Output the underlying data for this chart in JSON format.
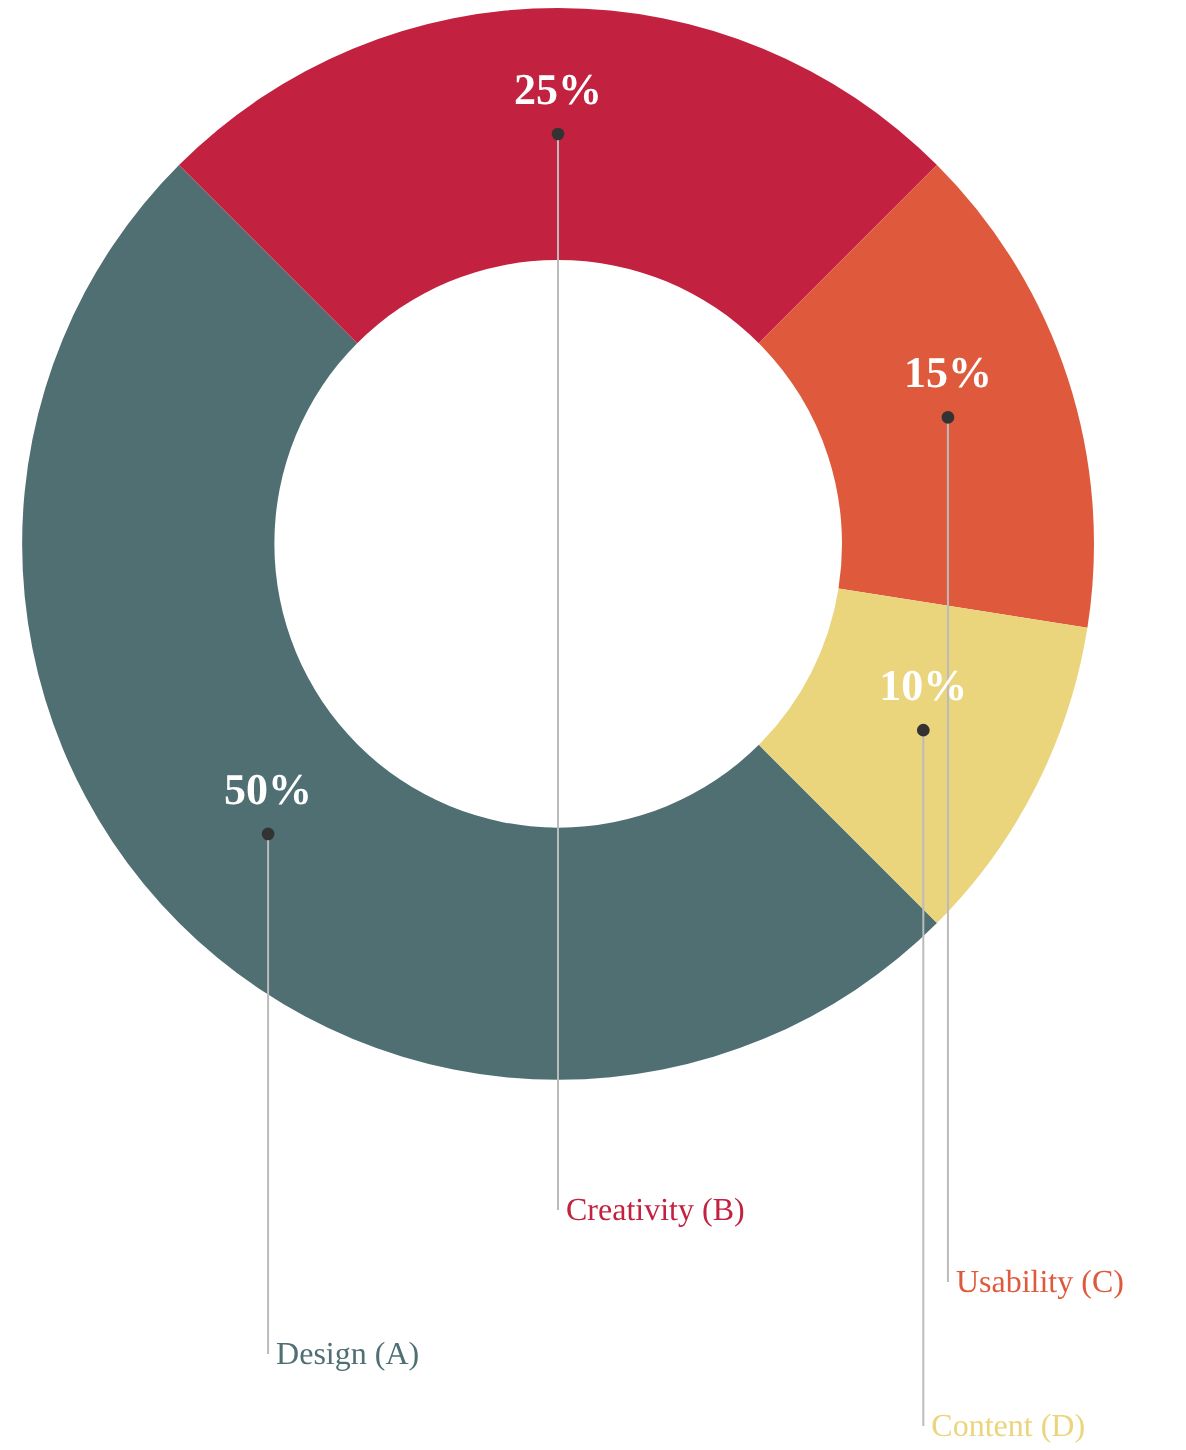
{
  "chart_data": {
    "type": "donut",
    "categories": [
      "Design (A)",
      "Creativity (B)",
      "Usability (C)",
      "Content (D)"
    ],
    "values": [
      50,
      25,
      15,
      10
    ],
    "colors": [
      "#4f6f73",
      "#c2223f",
      "#df5a3c",
      "#ebd57c"
    ],
    "value_labels": [
      "50%",
      "25%",
      "15%",
      "10%"
    ]
  }
}
